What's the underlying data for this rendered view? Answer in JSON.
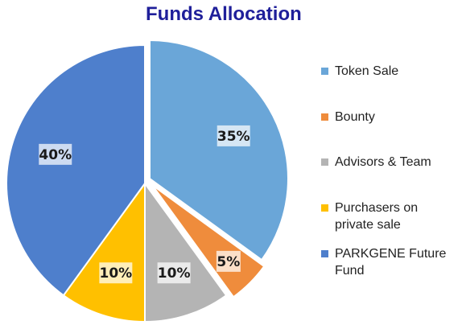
{
  "chart_data": {
    "type": "pie",
    "title": "Funds Allocation",
    "categories": [
      "Token Sale",
      "Bounty",
      "Advisors & Team",
      "Purchasers on private sale",
      "PARKGENE Future Fund"
    ],
    "values": [
      35,
      5,
      10,
      10,
      40
    ],
    "labels": [
      "35%",
      "5%",
      "10%",
      "10%",
      "40%"
    ],
    "colors": [
      "#6aa6d8",
      "#ef8c3c",
      "#b4b4b4",
      "#ffc000",
      "#4e7fcc"
    ],
    "exploded": [
      "Token Sale",
      "Bounty"
    ],
    "legend_position": "right"
  },
  "legend": {
    "items": [
      {
        "label": "Token Sale",
        "color": "#6aa6d8"
      },
      {
        "label": "Bounty",
        "color": "#ef8c3c"
      },
      {
        "label": "Advisors & Team",
        "color": "#b4b4b4"
      },
      {
        "label": "Purchasers on private sale",
        "color": "#ffc000"
      },
      {
        "label": "PARKGENE Future Fund",
        "color": "#4e7fcc"
      }
    ]
  }
}
